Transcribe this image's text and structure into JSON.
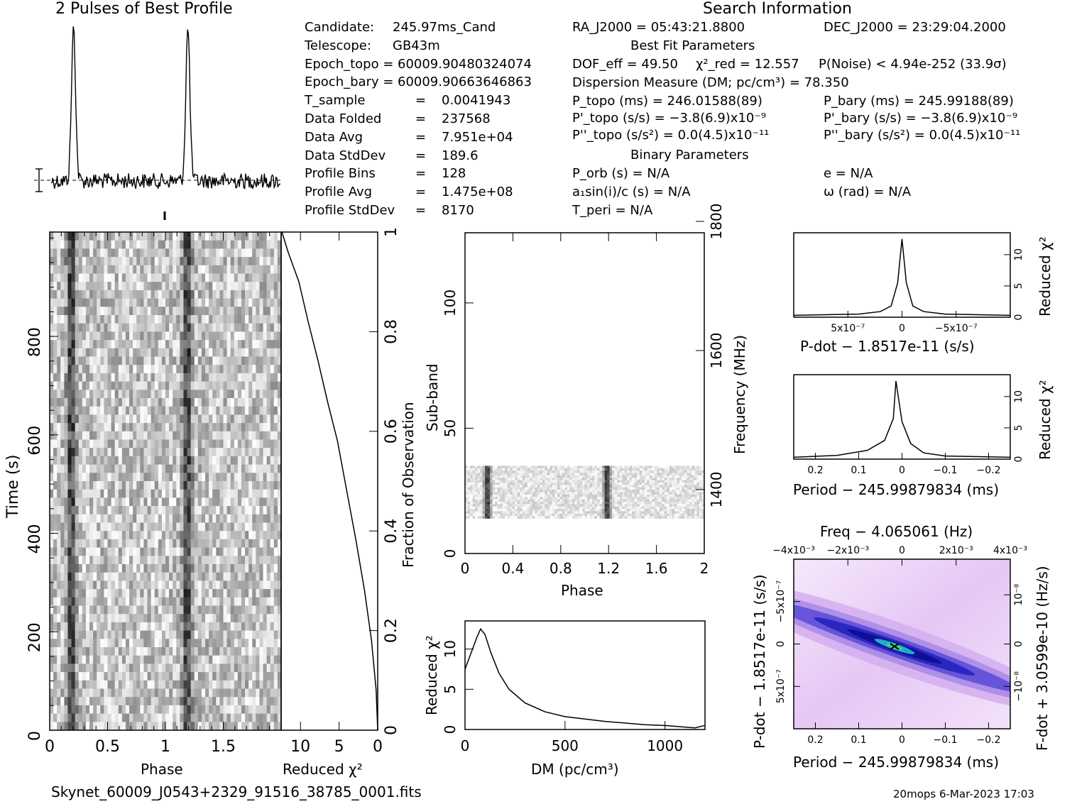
{
  "header": {
    "pulses_title": "2 Pulses of Best Profile",
    "search_title": "Search Information",
    "best_fit_title": "Best Fit Parameters",
    "binary_title": "Binary Parameters"
  },
  "info_left": [
    {
      "label": "Candidate:",
      "value": "245.97ms_Cand"
    },
    {
      "label": "Telescope:",
      "value": "GB43m"
    },
    {
      "label": "Epoch_topo =",
      "value": "60009.90480324074"
    },
    {
      "label": "Epoch_bary =",
      "value": "60009.90663646863"
    },
    {
      "label": "T_sample",
      "eq": "=",
      "value": "0.0041943"
    },
    {
      "label": "Data Folded",
      "eq": "=",
      "value": "237568"
    },
    {
      "label": "Data Avg",
      "eq": "=",
      "value": "7.951e+04"
    },
    {
      "label": "Data StdDev",
      "eq": "=",
      "value": "189.6"
    },
    {
      "label": "Profile Bins",
      "eq": "=",
      "value": "128"
    },
    {
      "label": "Profile Avg",
      "eq": "=",
      "value": "1.475e+08"
    },
    {
      "label": "Profile StdDev",
      "eq": "=",
      "value": "8170"
    }
  ],
  "info_mid": {
    "ra": "RA_J2000 = 05:43:21.8800",
    "dec": "DEC_J2000 = 23:29:04.2000",
    "dof": "DOF_eff = 49.50",
    "chi2": "χ²_red = 12.557",
    "pnoise": "P(Noise) < 4.94e-252  (33.9σ)",
    "dm": "Dispersion Measure (DM; pc/cm³) = 78.350",
    "ptopo": "P_topo (ms) =  246.01588(89)",
    "pbary": "P_bary (ms) =  245.99188(89)",
    "pdtopo": "P'_topo (s/s) = −3.8(6.9)x10⁻⁹",
    "pdbary": "P'_bary (s/s) = −3.8(6.9)x10⁻⁹",
    "pddtopo": "P''_topo (s/s²) = 0.0(4.5)x10⁻¹¹",
    "pddbary": "P''_bary (s/s²) = 0.0(4.5)x10⁻¹¹",
    "porb": "P_orb (s) = N/A",
    "e": "e = N/A",
    "a1": "a₁sin(i)/c (s) = N/A",
    "omega": "ω (rad) = N/A",
    "tperi": "T_peri = N/A"
  },
  "labels": {
    "time_s": "Time (s)",
    "phase": "Phase",
    "reduced_chi2": "Reduced χ²",
    "fraction": "Fraction of Observation",
    "sub_band": "Sub-band",
    "frequency": "Frequency (MHz)",
    "dm_axis": "DM (pc/cm³)",
    "pdot_axis": "P-dot − 1.8517e-11 (s/s)",
    "period_axis": "Period − 245.99879834 (ms)",
    "freq_title": "Freq − 4.065061 (Hz)",
    "pdot_vert": "P-dot − 1.8517e-11 (s/s)",
    "fdot_vert": "F-dot + 3.0599e-10 (Hz/s)"
  },
  "footer": {
    "filename": "Skynet_60009_J0543+2329_91516_38785_0001.fits",
    "stamp": "20mops   6-Mar-2023 17:03"
  },
  "chart_data": [
    {
      "type": "line",
      "title": "2 Pulses of Best Profile",
      "x": [
        0,
        0.19,
        1,
        1.19,
        2
      ],
      "peak_phases": [
        0.19,
        1.19
      ],
      "xlim": [
        0,
        2
      ]
    },
    {
      "type": "heatmap",
      "xlabel": "Phase",
      "ylabel": "Time (s)",
      "xlim": [
        0,
        2
      ],
      "ylim": [
        0,
        1000
      ],
      "xticks": [
        "0",
        "0.5",
        "1",
        "1.5"
      ],
      "yticks": [
        "0",
        "200",
        "400",
        "600",
        "800"
      ]
    },
    {
      "type": "line",
      "xlabel": "Reduced χ²",
      "ylabel": "Fraction of Observation",
      "xlim": [
        12.5,
        0
      ],
      "xticks": [
        "10",
        "5",
        "0"
      ],
      "yticks": [
        "0",
        "0.2",
        "0.4",
        "0.6",
        "0.8",
        "1"
      ],
      "x": [
        12.4,
        11.6,
        10.2,
        9.0,
        7.7,
        6.5,
        5.2,
        4.0,
        2.8,
        1.7,
        0.8,
        0.2,
        0
      ],
      "y": [
        1.0,
        0.96,
        0.9,
        0.82,
        0.74,
        0.66,
        0.58,
        0.48,
        0.38,
        0.28,
        0.18,
        0.08,
        0.0
      ]
    },
    {
      "type": "heatmap",
      "xlabel": "Phase",
      "ylabel": "Sub-band",
      "y2label": "Frequency (MHz)",
      "xticks": [
        "0",
        "0.4",
        "0.8",
        "1.2",
        "1.6",
        "2"
      ],
      "yticks": [
        "0",
        "50",
        "100"
      ],
      "y2ticks": [
        "1400",
        "1600",
        "1800"
      ],
      "xlim": [
        0,
        2
      ],
      "ylim": [
        0,
        128
      ],
      "active_band": [
        14,
        35
      ]
    },
    {
      "type": "line",
      "xlabel": "DM (pc/cm³)",
      "ylabel": "Reduced χ²",
      "xlim": [
        0,
        1200
      ],
      "ylim": [
        0,
        13.5
      ],
      "xticks": [
        "0",
        "500",
        "1000"
      ],
      "yticks": [
        "0",
        "5",
        "10"
      ],
      "x": [
        0,
        30,
        60,
        78,
        100,
        130,
        170,
        220,
        300,
        400,
        500,
        600,
        700,
        800,
        900,
        1000,
        1100,
        1150,
        1200
      ],
      "y": [
        7.5,
        9.5,
        11.5,
        12.5,
        11.8,
        9.5,
        7.0,
        5.0,
        3.3,
        2.2,
        1.6,
        1.3,
        1.0,
        0.8,
        0.6,
        0.5,
        0.3,
        0.2,
        0.5
      ]
    },
    {
      "type": "line",
      "xlabel": "P-dot − 1.8517e-11 (s/s)",
      "ylabel": "Reduced χ²",
      "xlim": [
        1e-06,
        -1e-06
      ],
      "ylim": [
        0,
        13.5
      ],
      "xticks": [
        "5x10⁻⁷",
        "0",
        "−5x10⁻⁷"
      ],
      "yticks": [
        "0",
        "5",
        "10"
      ],
      "x": [
        1e-06,
        4e-07,
        2e-07,
        1e-07,
        4e-08,
        0,
        -4e-08,
        -1e-07,
        -2e-07,
        -4e-07,
        -1e-06
      ],
      "y": [
        0.3,
        0.5,
        0.9,
        1.8,
        5.5,
        12.5,
        5.5,
        1.8,
        0.9,
        0.5,
        0.3
      ]
    },
    {
      "type": "line",
      "xlabel": "Period − 245.99879834 (ms)",
      "ylabel": "Reduced χ²",
      "xlim": [
        0.25,
        -0.25
      ],
      "ylim": [
        0,
        13.5
      ],
      "xticks": [
        "0.2",
        "0.1",
        "0",
        "−0.1",
        "−0.2"
      ],
      "yticks": [
        "0",
        "5",
        "10"
      ],
      "x": [
        0.25,
        0.15,
        0.08,
        0.04,
        0.02,
        0.014,
        0.0,
        -0.02,
        -0.05,
        -0.1,
        -0.25
      ],
      "y": [
        0.3,
        0.6,
        1.4,
        3.0,
        6.5,
        12.5,
        6.0,
        2.5,
        1.0,
        0.5,
        0.3
      ]
    },
    {
      "type": "heatmap",
      "xlabel": "Period − 245.99879834 (ms)",
      "x2label": "Freq − 4.065061 (Hz)",
      "ylabel": "P-dot − 1.8517e-11 (s/s)",
      "y2label": "F-dot + 3.0599e-10 (Hz/s)",
      "xticks": [
        "0.2",
        "0.1",
        "0",
        "−0.1",
        "−0.2"
      ],
      "x2ticks": [
        "−4x10⁻³",
        "−2x10⁻³",
        "0",
        "2x10⁻³",
        "4x10⁻³"
      ],
      "yticks": [
        "5x10⁻⁷",
        "0",
        "−5x10⁻⁷"
      ],
      "y2ticks": [
        "−10⁻⁸",
        "0",
        "10⁻⁸"
      ]
    }
  ]
}
